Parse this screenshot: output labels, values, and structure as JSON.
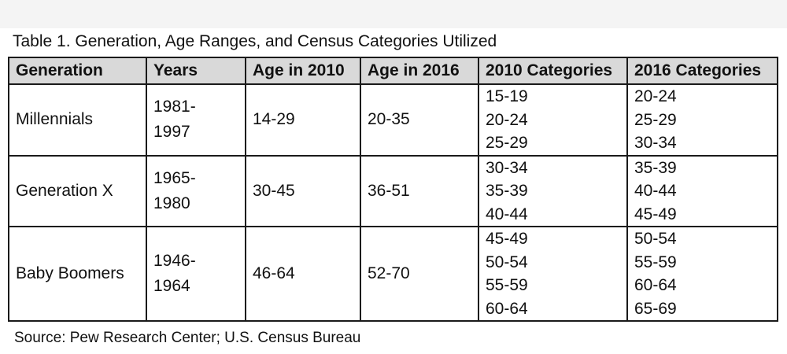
{
  "caption": "Table 1. Generation, Age Ranges, and Census Categories Utilized",
  "table": {
    "headers": [
      "Generation",
      "Years",
      "Age in 2010",
      "Age in 2016",
      "2010 Categories",
      "2016 Categories"
    ],
    "rows": [
      {
        "generation": "Millennials",
        "years": [
          "1981-",
          "1997"
        ],
        "age_2010": "14-29",
        "age_2016": "20-35",
        "categories_2010": [
          "15-19",
          "20-24",
          "25-29"
        ],
        "categories_2016": [
          "20-24",
          "25-29",
          "30-34"
        ]
      },
      {
        "generation": "Generation X",
        "years": [
          "1965-",
          "1980"
        ],
        "age_2010": "30-45",
        "age_2016": "36-51",
        "categories_2010": [
          "30-34",
          "35-39",
          "40-44"
        ],
        "categories_2016": [
          "35-39",
          "40-44",
          "45-49"
        ]
      },
      {
        "generation": "Baby Boomers",
        "years": [
          "1946-",
          "1964"
        ],
        "age_2010": "46-64",
        "age_2016": "52-70",
        "categories_2010": [
          "45-49",
          "50-54",
          "55-59",
          "60-64"
        ],
        "categories_2016": [
          "50-54",
          "55-59",
          "60-64",
          "65-69"
        ]
      }
    ]
  },
  "source": "Source: Pew Research Center; U.S. Census Bureau"
}
